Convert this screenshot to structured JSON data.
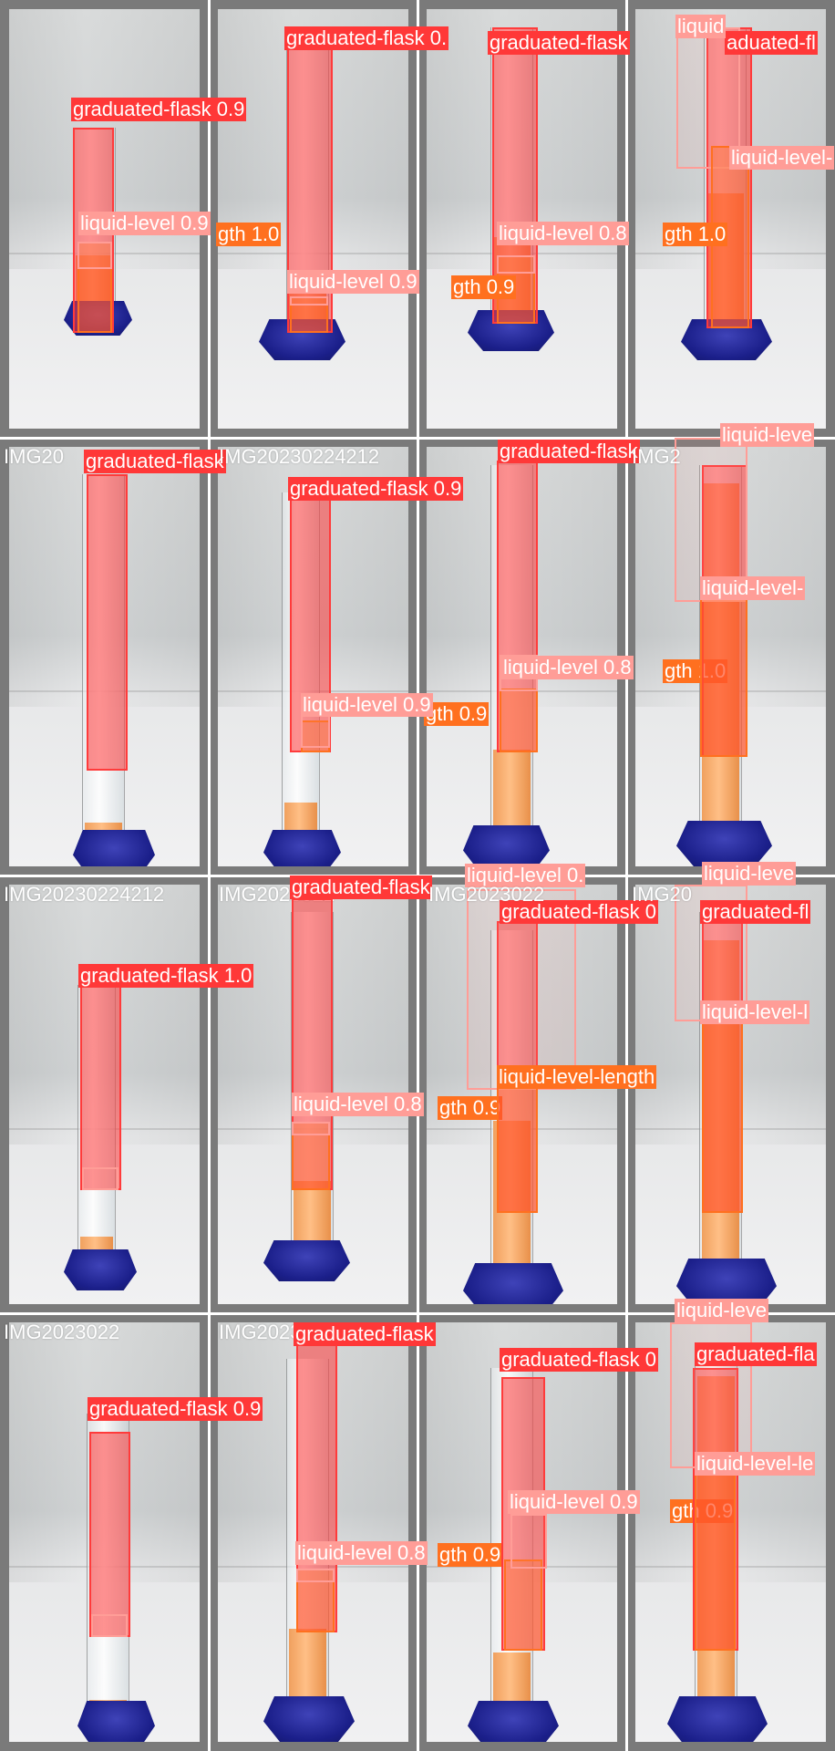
{
  "colors": {
    "graduated_flask": "#ff3838",
    "liquid_level": "#ff9d97",
    "liquid_level_length": "#ff701f",
    "stand": "#1b1f8a",
    "liquid": "#ffb070"
  },
  "labels": {
    "flask_09": "graduated-flask 0.9",
    "flask_10": "graduated-flask 1.0",
    "flask_0": "graduated-flask 0.",
    "flask_bare": "graduated-flask",
    "flask_0cut": "graduated-flask 0",
    "flask_cut": "graduated-fla",
    "flask_cut2": "graduated-fl",
    "flask_trunc": "aduated-fl",
    "level_09": "liquid-level 0.9",
    "level_08": "liquid-level 0.8",
    "level_cut": "liquid-leve",
    "level_cut2": "liquid-level-l",
    "level_dash": "liquid-level-",
    "level_dashcut": "liquid-level-le",
    "level_0": "liquid-level 0.",
    "length_full": "liquid-level-length",
    "length_10": "gth 1.0",
    "length_09": "gth 0.9",
    "length_rest": "-level-length",
    "score_09": "0.9",
    "score_10": "1.0",
    "liquid": "liquid"
  },
  "filenames": {
    "f1": "IMG20",
    "f2": "IMG20230224212",
    "f3": "IMG20230224212",
    "f4": "IMG2023022",
    "f5": "IMG2023022",
    "f6": "IMG20",
    "f7": "IMG2",
    "f8": "IMG2023022",
    "f9": "IMG20230224212"
  }
}
